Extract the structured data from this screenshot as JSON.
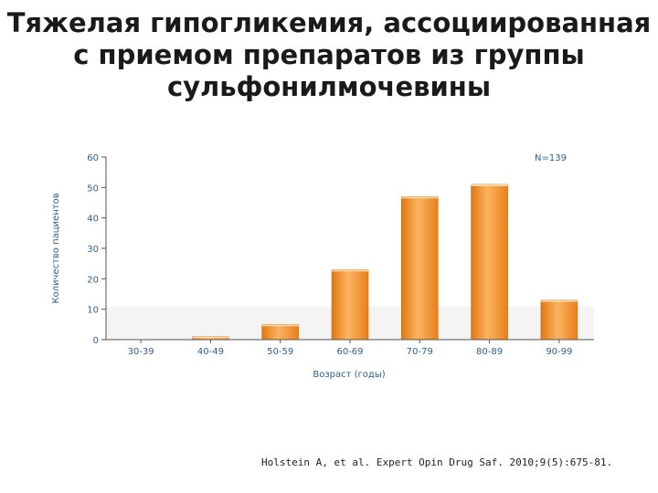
{
  "slide": {
    "title_lines": [
      "Тяжелая гипогликемия, ассоциированная",
      "с приемом препаратов из группы",
      "сульфонилмочевины"
    ],
    "citation": "Holstein A, et al. Expert Opin Drug Saf. 2010;9(5):675-81."
  },
  "colors": {
    "bar": "#f28c1e",
    "bar_highlight": "#fbb462",
    "axis": "#555555",
    "text": "#2f5f8f"
  },
  "chart_data": {
    "type": "bar",
    "categories": [
      "30-39",
      "40-49",
      "50-59",
      "60-69",
      "70-79",
      "80-89",
      "90-99"
    ],
    "values": [
      0,
      1,
      5,
      23,
      47,
      51,
      13
    ],
    "xlabel": "Возраст (годы)",
    "ylabel": "Количество пациентов",
    "ylim": [
      0,
      60
    ],
    "yticks": [
      0,
      10,
      20,
      30,
      40,
      50,
      60
    ],
    "annotation": "N=139",
    "grid": false
  }
}
